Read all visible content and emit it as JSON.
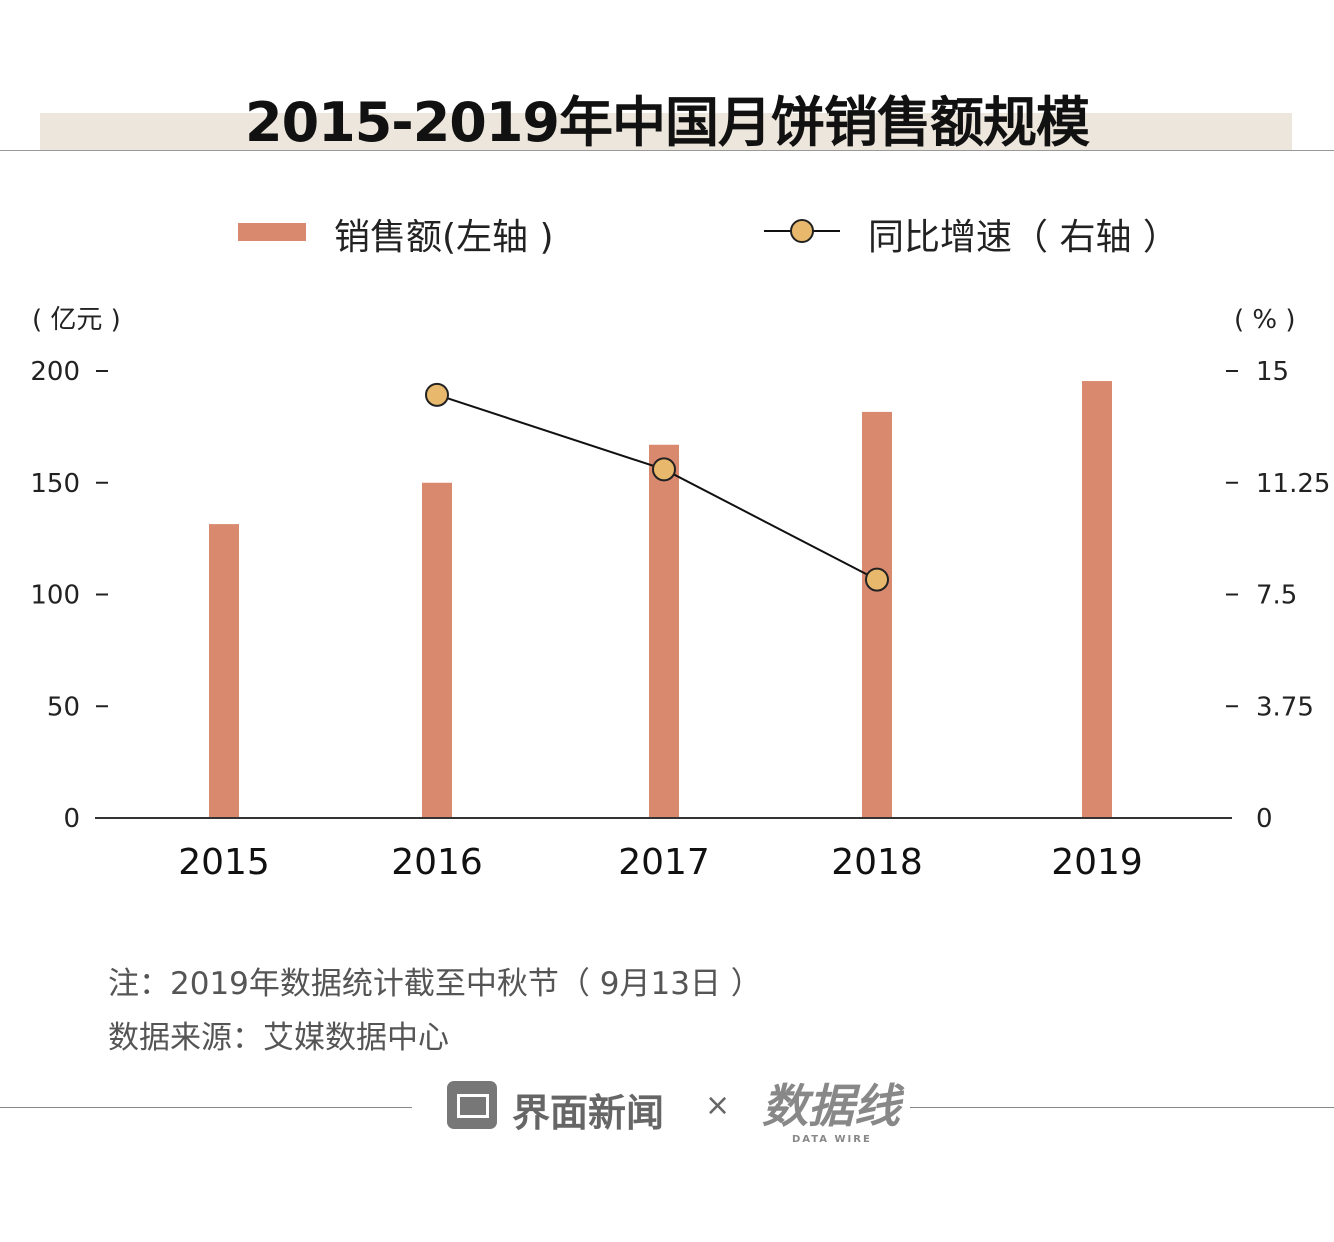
{
  "chart_data": {
    "type": "bar+line",
    "title": "2015-2019年中国月饼销售额规模",
    "categories": [
      "2015",
      "2016",
      "2017",
      "2018",
      "2019"
    ],
    "series": [
      {
        "name": "销售额(左轴 )",
        "type": "bar",
        "axis": "left",
        "color": "#d9896e",
        "values": [
          131.5,
          150,
          167,
          181.7,
          195.5
        ]
      },
      {
        "name": "同比增速（ 右轴 ）",
        "type": "line",
        "axis": "right",
        "color": "#e8b96c",
        "values": [
          null,
          14.2,
          11.7,
          8.0,
          null
        ]
      }
    ],
    "left_axis": {
      "label": "( 亿元 )",
      "ticks": [
        "0",
        "50",
        "100",
        "150",
        "200"
      ],
      "tick_values": [
        0,
        50,
        100,
        150,
        200
      ],
      "range": [
        0,
        200
      ]
    },
    "right_axis": {
      "label": "( % )",
      "ticks": [
        "0",
        "3.75",
        "7.5",
        "11.25",
        "15"
      ],
      "tick_values": [
        0,
        3.75,
        7.5,
        11.25,
        15
      ],
      "range": [
        0,
        15
      ]
    },
    "legend_position": "top"
  },
  "notes": [
    "注：2019年数据统计截至中秋节（ 9月13日 ）",
    "数据来源：艾媒数据中心"
  ],
  "footer": {
    "brand": "界面新闻",
    "times": "×",
    "partner": "数据线",
    "partner_sub": "DATA WIRE"
  }
}
